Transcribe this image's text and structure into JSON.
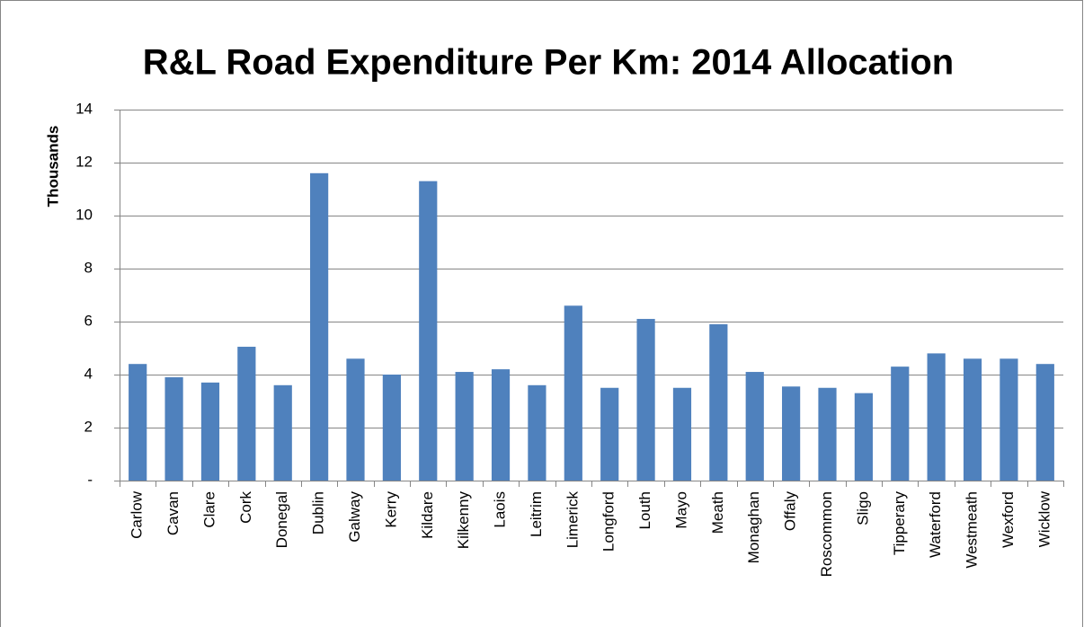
{
  "chart_data": {
    "type": "bar",
    "title": "R&L Road Expenditure Per Km: 2014 Allocation",
    "y_label": "Thousands",
    "categories": [
      "Carlow",
      "Cavan",
      "Clare",
      "Cork",
      "Donegal",
      "Dublin",
      "Galway",
      "Kerry",
      "Kildare",
      "Kilkenny",
      "Laois",
      "Leitrim",
      "Limerick",
      "Longford",
      "Louth",
      "Mayo",
      "Meath",
      "Monaghan",
      "Offaly",
      "Roscommon",
      "Sligo",
      "Tipperary",
      "Waterford",
      "Westmeath",
      "Wexford",
      "Wicklow"
    ],
    "values": [
      4.4,
      3.9,
      3.7,
      5.05,
      3.6,
      11.6,
      4.6,
      4.0,
      11.3,
      4.1,
      4.2,
      3.6,
      6.6,
      3.5,
      6.1,
      3.5,
      5.9,
      4.1,
      3.55,
      3.5,
      3.3,
      4.3,
      4.8,
      4.6,
      4.6,
      4.4
    ],
    "color": "#4f81bd",
    "ylim": [
      0,
      14
    ],
    "yticks": [
      {
        "value": 0,
        "label": "-"
      },
      2,
      4,
      6,
      8,
      10,
      12,
      14
    ],
    "grid": true
  }
}
